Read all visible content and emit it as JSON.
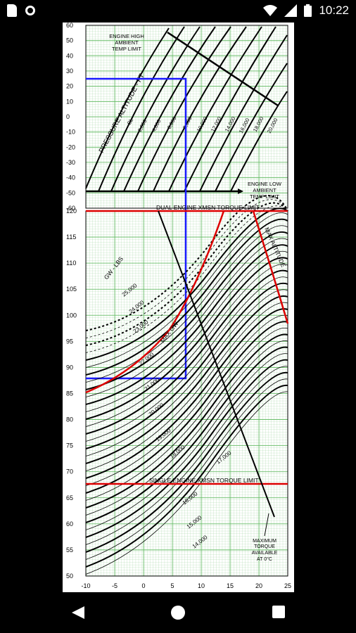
{
  "status_bar": {
    "time": "10:22",
    "icons": [
      "sd-card-icon",
      "circle-icon",
      "wifi-icon",
      "signal-icon",
      "battery-icon"
    ]
  },
  "chart": {
    "upper": {
      "y_ticks": [
        "60",
        "50",
        "40",
        "30",
        "20",
        "10",
        "0",
        "-10",
        "-20",
        "-30",
        "-40",
        "-50",
        "-60"
      ],
      "labels": {
        "engine_high": [
          "ENGINE HIGH",
          "AMBIENT",
          "TEMP LIMIT"
        ],
        "engine_low": [
          "ENGINE LOW",
          "AMBIENT",
          "TEMP LIMIT"
        ],
        "pressure_altitude": "PRESSURE ALTITUDE - FT",
        "altitudes": [
          "SL",
          "2,000",
          "4,000",
          "6,000",
          "8,000",
          "10,000",
          "12,000",
          "14,000",
          "16,000",
          "18,000",
          "20,000"
        ]
      }
    },
    "lower": {
      "y_ticks": [
        "120",
        "115",
        "110",
        "105",
        "100",
        "95",
        "90",
        "85",
        "80",
        "75",
        "70",
        "65",
        "60",
        "55",
        "50"
      ],
      "x_ticks": [
        "-10",
        "-5",
        "0",
        "5",
        "10",
        "15",
        "20",
        "25"
      ],
      "labels": {
        "dual_engine": "DUAL ENGINE XMSN TORQUE LIMIT",
        "single_engine": "SINGLE ENGINE XMSN TORQUE LIMIT",
        "max_altitude": "MAX ALTITUDE",
        "gw_lbs": "GW - LBS",
        "max_gw": "MAX GW",
        "max_torque": [
          "MAXIMUM",
          "TORQUE",
          "AVAILABLE",
          "AT 0°C"
        ],
        "weights": [
          "25,000",
          "24,000",
          "23,000",
          "22,000",
          "21,000",
          "20,000",
          "19,000",
          "18,000",
          "17,000",
          "16,000",
          "15,000",
          "14,000"
        ]
      }
    }
  }
}
